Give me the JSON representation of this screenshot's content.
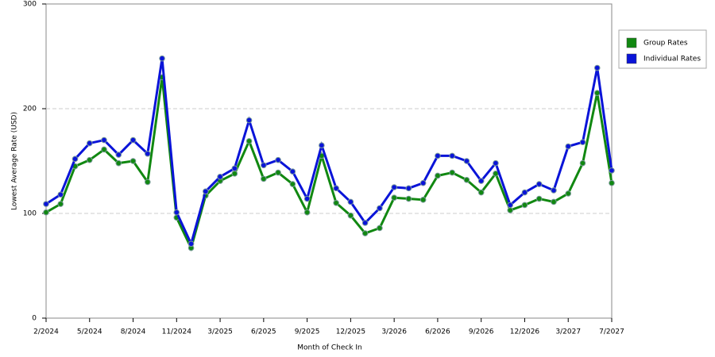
{
  "chart_data": {
    "type": "line",
    "x_label": "Month of Check In",
    "y_label": "Lowest Average Rate (USD)",
    "categories": [
      "2/2024",
      null,
      null,
      "5/2024",
      null,
      null,
      "8/2024",
      null,
      null,
      "11/2024",
      null,
      null,
      "3/2025",
      null,
      null,
      "6/2025",
      null,
      null,
      "9/2025",
      null,
      null,
      "12/2025",
      null,
      null,
      "3/2026",
      null,
      null,
      "6/2026",
      null,
      null,
      "9/2026",
      null,
      null,
      "12/2026",
      null,
      null,
      "3/2027",
      null,
      null,
      "7/2027"
    ],
    "series": [
      {
        "name": "Group Rates",
        "color": "#118811",
        "values": [
          101,
          109,
          145,
          151,
          161,
          148,
          150,
          130,
          230,
          96,
          67,
          117,
          131,
          138,
          169,
          133,
          139,
          128,
          101,
          155,
          110,
          98,
          81,
          86,
          115,
          114,
          113,
          136,
          139,
          132,
          120,
          138,
          103,
          108,
          114,
          111,
          119,
          148,
          215,
          129
        ]
      },
      {
        "name": "Individual Rates",
        "color": "#0a14d8",
        "values": [
          109,
          118,
          152,
          167,
          170,
          156,
          170,
          157,
          248,
          101,
          71,
          121,
          135,
          143,
          189,
          146,
          151,
          140,
          114,
          165,
          124,
          111,
          91,
          105,
          125,
          124,
          129,
          155,
          155,
          150,
          131,
          148,
          108,
          120,
          128,
          122,
          164,
          168,
          239,
          141
        ]
      }
    ],
    "ylim": [
      0,
      300
    ],
    "yticks": [
      0,
      100,
      200,
      300
    ],
    "grid": true,
    "legend": "right"
  }
}
